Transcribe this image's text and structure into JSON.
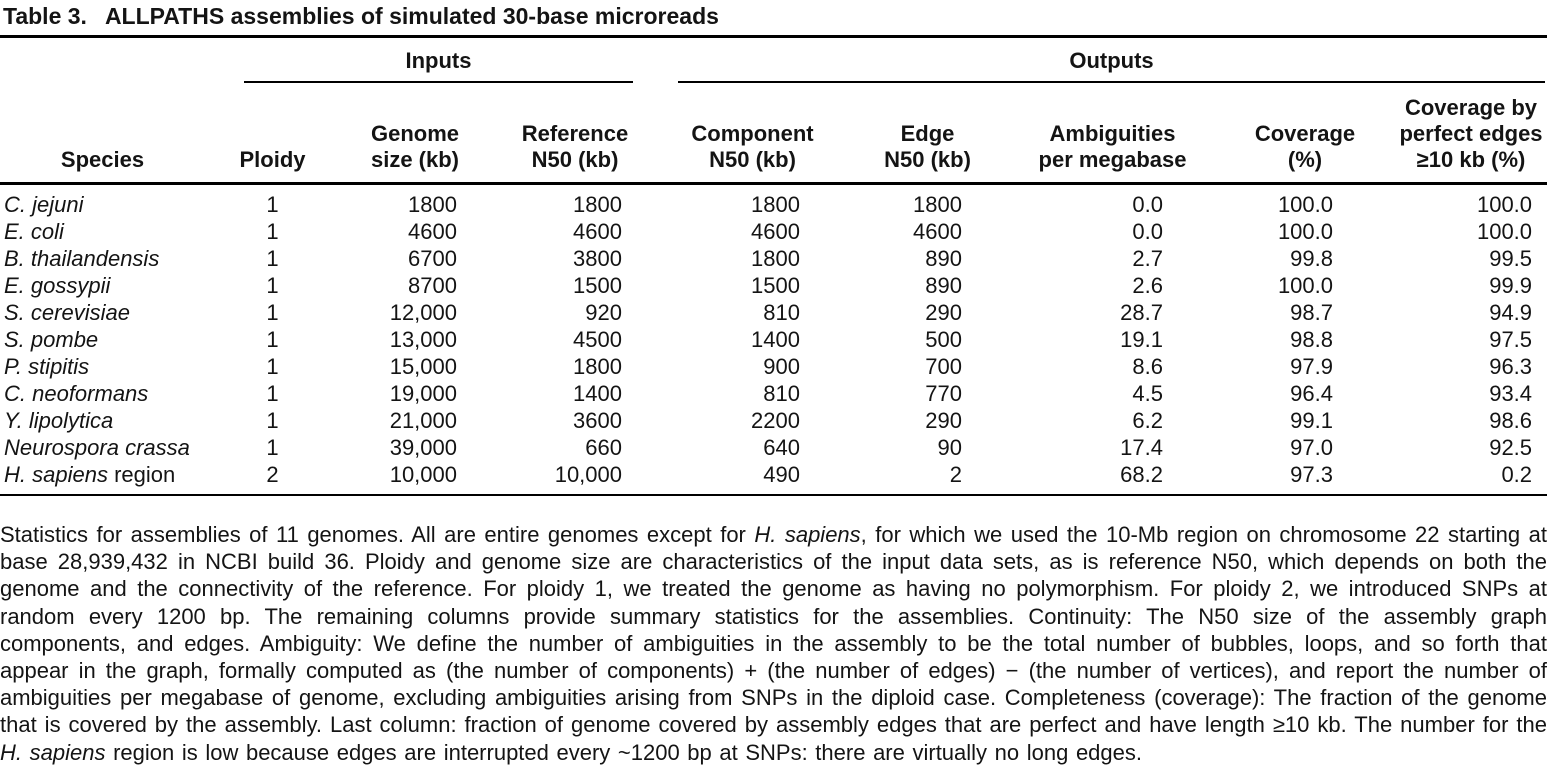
{
  "caption": {
    "label": "Table 3.",
    "title": "ALLPATHS assemblies of simulated 30-base microreads"
  },
  "table": {
    "group_headers": {
      "inputs": "Inputs",
      "outputs": "Outputs"
    },
    "columns": [
      "Species",
      "Ploidy",
      "Genome\nsize (kb)",
      "Reference\nN50 (kb)",
      "Component\nN50 (kb)",
      "Edge\nN50 (kb)",
      "Ambiguities\nper megabase",
      "Coverage\n(%)",
      "Coverage by\nperfect edges\n≥10 kb (%)"
    ],
    "rows": [
      {
        "species": "C. jejuni",
        "species_suffix": "",
        "values": [
          "1",
          "1800",
          "1800",
          "1800",
          "1800",
          "0.0",
          "100.0",
          "100.0"
        ]
      },
      {
        "species": "E. coli",
        "species_suffix": "",
        "values": [
          "1",
          "4600",
          "4600",
          "4600",
          "4600",
          "0.0",
          "100.0",
          "100.0"
        ]
      },
      {
        "species": "B. thailandensis",
        "species_suffix": "",
        "values": [
          "1",
          "6700",
          "3800",
          "1800",
          "890",
          "2.7",
          "99.8",
          "99.5"
        ]
      },
      {
        "species": "E. gossypii",
        "species_suffix": "",
        "values": [
          "1",
          "8700",
          "1500",
          "1500",
          "890",
          "2.6",
          "100.0",
          "99.9"
        ]
      },
      {
        "species": "S. cerevisiae",
        "species_suffix": "",
        "values": [
          "1",
          "12,000",
          "920",
          "810",
          "290",
          "28.7",
          "98.7",
          "94.9"
        ]
      },
      {
        "species": "S. pombe",
        "species_suffix": "",
        "values": [
          "1",
          "13,000",
          "4500",
          "1400",
          "500",
          "19.1",
          "98.8",
          "97.5"
        ]
      },
      {
        "species": "P. stipitis",
        "species_suffix": "",
        "values": [
          "1",
          "15,000",
          "1800",
          "900",
          "700",
          "8.6",
          "97.9",
          "96.3"
        ]
      },
      {
        "species": "C. neoformans",
        "species_suffix": "",
        "values": [
          "1",
          "19,000",
          "1400",
          "810",
          "770",
          "4.5",
          "96.4",
          "93.4"
        ]
      },
      {
        "species": "Y. lipolytica",
        "species_suffix": "",
        "values": [
          "1",
          "21,000",
          "3600",
          "2200",
          "290",
          "6.2",
          "99.1",
          "98.6"
        ]
      },
      {
        "species": "Neurospora crassa",
        "species_suffix": "",
        "values": [
          "1",
          "39,000",
          "660",
          "640",
          "90",
          "17.4",
          "97.0",
          "92.5"
        ]
      },
      {
        "species": "H. sapiens",
        "species_suffix": " region",
        "values": [
          "2",
          "10,000",
          "10,000",
          "490",
          "2",
          "68.2",
          "97.3",
          "0.2"
        ]
      }
    ]
  },
  "footnote": {
    "segments": [
      {
        "italic": false,
        "text": "Statistics for assemblies of 11 genomes. All are entire genomes except for "
      },
      {
        "italic": true,
        "text": "H. sapiens"
      },
      {
        "italic": false,
        "text": ", for which we used the 10-Mb region on chromosome 22 starting at base 28,939,432 in NCBI build 36. Ploidy and genome size are characteristics of the input data sets, as is reference N50, which depends on both the genome and the connectivity of the reference. For ploidy 1, we treated the genome as having no polymorphism. For ploidy 2, we introduced SNPs at random every 1200 bp. The remaining columns provide summary statistics for the assemblies. Continuity: The N50 size of the assembly graph components, and edges. Ambiguity: We define the number of ambiguities in the assembly to be the total number of bubbles, loops, and so forth that appear in the graph, formally computed as (the number of components) + (the number of edges) − (the number of vertices), and report the number of ambiguities per megabase of genome, excluding ambiguities arising from SNPs in the diploid case. Completeness (coverage): The fraction of the genome that is covered by the assembly. Last column: fraction of genome covered by assembly edges that are perfect and have length ≥10 kb. The number for the "
      },
      {
        "italic": true,
        "text": "H. sapiens"
      },
      {
        "italic": false,
        "text": " region is low because edges are interrupted every ~1200 bp at SNPs: there are virtually no long edges."
      }
    ]
  },
  "colors": {
    "text": "#141414",
    "rule": "#000000",
    "background": "#ffffff"
  }
}
